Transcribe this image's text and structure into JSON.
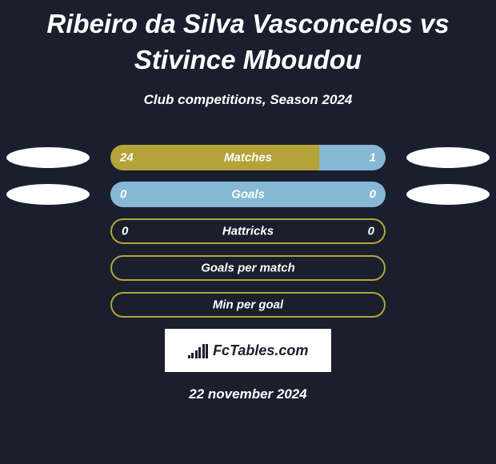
{
  "title": "Ribeiro da Silva Vasconcelos vs Stivince Mboudou",
  "subtitle": "Club competitions, Season 2024",
  "date": "22 november 2024",
  "logo_text": "FcTables.com",
  "colors": {
    "background": "#1a1f2e",
    "olive": "#b5a33a",
    "light_blue": "#87b8d4",
    "ellipse": "#ffffff",
    "text": "#ffffff"
  },
  "rows": [
    {
      "type": "split",
      "label": "Matches",
      "left_value": "24",
      "right_value": "1",
      "left_color": "#b5a33a",
      "right_color": "#87b8d4",
      "left_width_pct": 76,
      "right_width_pct": 24,
      "show_ellipses": true
    },
    {
      "type": "split",
      "label": "Goals",
      "left_value": "0",
      "right_value": "0",
      "left_color": "#87b8d4",
      "right_color": "#87b8d4",
      "left_width_pct": 50,
      "right_width_pct": 50,
      "show_ellipses": true
    },
    {
      "type": "bordered",
      "label": "Hattricks",
      "left_value": "0",
      "right_value": "0",
      "show_ellipses": false
    },
    {
      "type": "bordered",
      "label": "Goals per match",
      "left_value": "",
      "right_value": "",
      "show_ellipses": false
    },
    {
      "type": "bordered",
      "label": "Min per goal",
      "left_value": "",
      "right_value": "",
      "show_ellipses": false
    }
  ],
  "logo_bar_heights": [
    4,
    7,
    10,
    14,
    18,
    18
  ]
}
